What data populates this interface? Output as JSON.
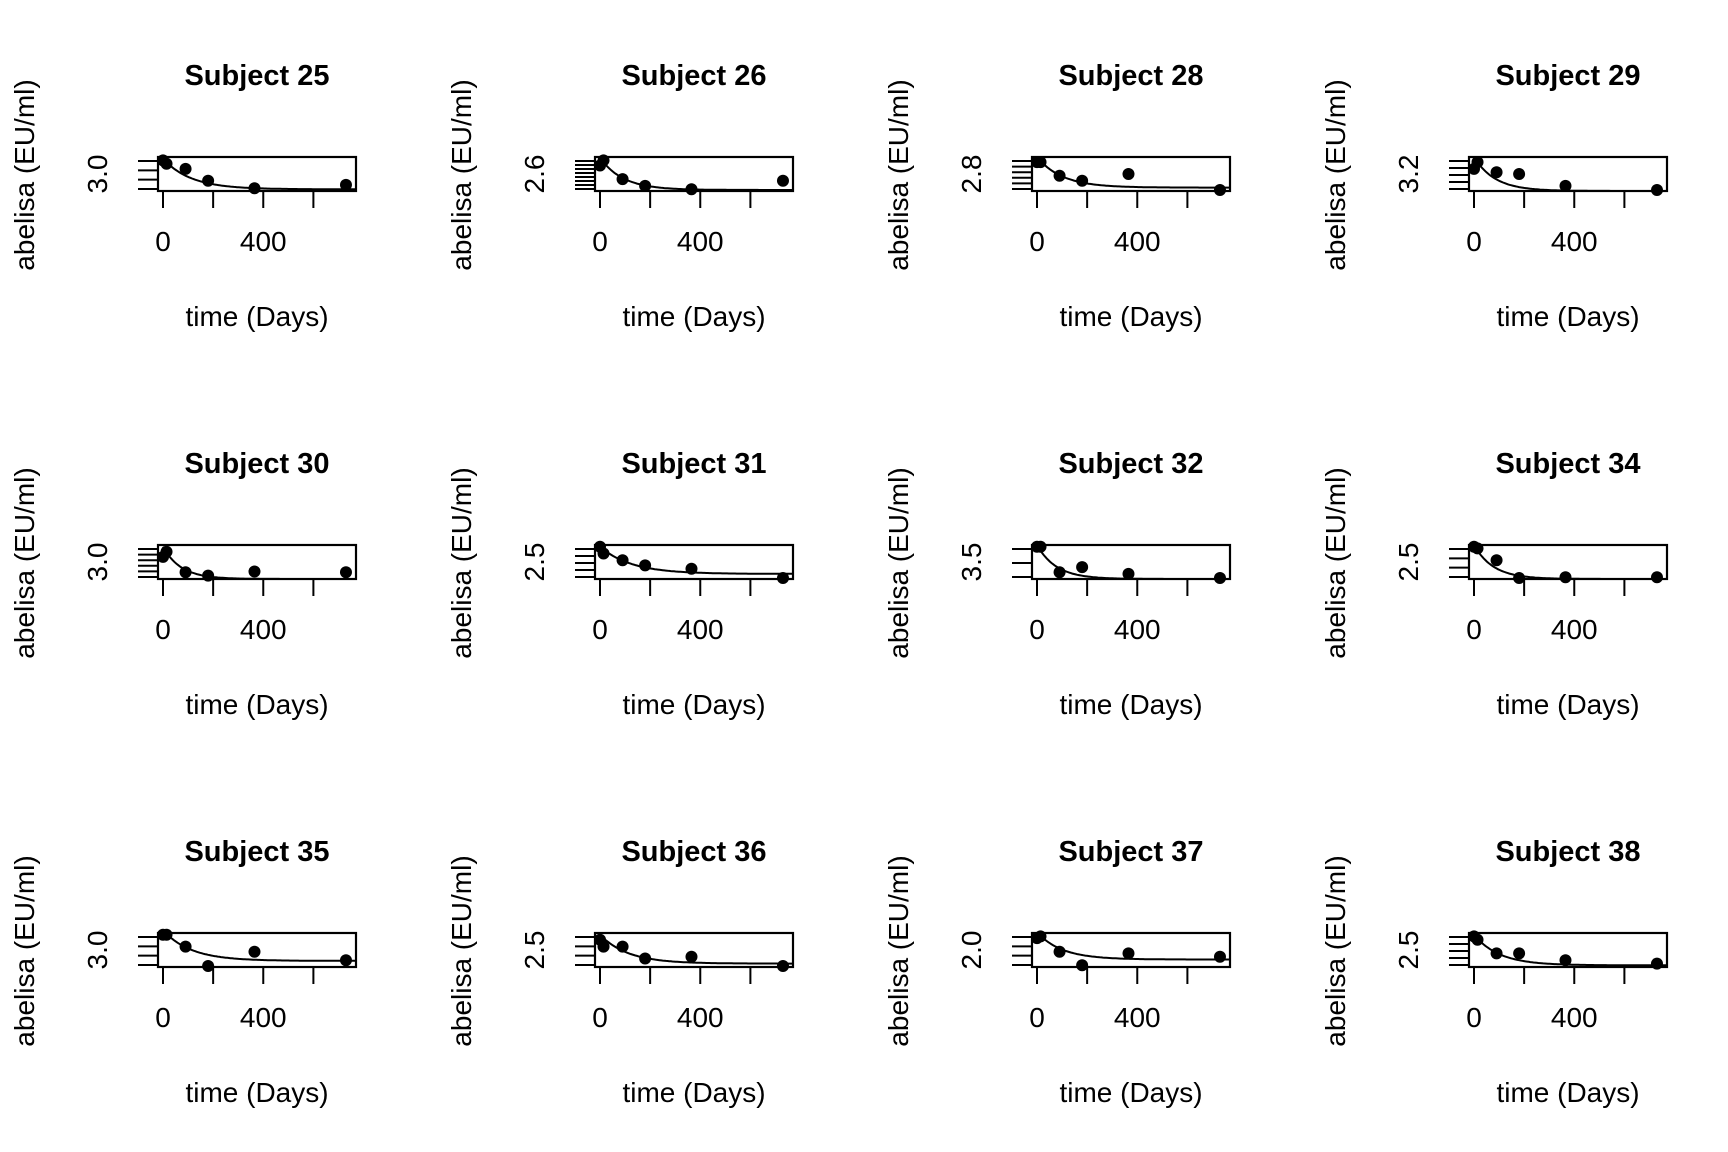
{
  "figure": {
    "background": "#ffffff",
    "ink_color": "#000000",
    "layout": {
      "rows": 3,
      "cols": 4
    }
  },
  "chart_data": [
    {
      "type": "scatter",
      "title": "Subject 25",
      "xlabel": "time (Days)",
      "ylabel": "abelisa (EU/ml)",
      "x_ticks": [
        0,
        400
      ],
      "x_extra_ticks": [
        200,
        600
      ],
      "y_tick_label": "3.0",
      "y_minor_tick_count": 4,
      "xlim": [
        -20,
        770
      ],
      "ylim": [
        0,
        1
      ],
      "points": [
        [
          0,
          0.9
        ],
        [
          14,
          0.8
        ],
        [
          90,
          0.65
        ],
        [
          180,
          0.3
        ],
        [
          365,
          0.08
        ],
        [
          730,
          0.18
        ]
      ],
      "fit": {
        "model": "exponential decay",
        "a": 0.9,
        "k": 0.009,
        "c": 0.05
      }
    },
    {
      "type": "scatter",
      "title": "Subject 26",
      "xlabel": "time (Days)",
      "ylabel": "abelisa (EU/ml)",
      "x_ticks": [
        0,
        400
      ],
      "x_extra_ticks": [
        200,
        600
      ],
      "y_tick_label": "2.6",
      "y_minor_tick_count": 8,
      "xlim": [
        -20,
        770
      ],
      "ylim": [
        0,
        1
      ],
      "points": [
        [
          0,
          0.75
        ],
        [
          14,
          0.9
        ],
        [
          90,
          0.35
        ],
        [
          180,
          0.15
        ],
        [
          365,
          0.05
        ],
        [
          730,
          0.3
        ]
      ],
      "fit": {
        "model": "exponential decay",
        "a": 0.95,
        "k": 0.011,
        "c": 0.03
      }
    },
    {
      "type": "scatter",
      "title": "Subject 28",
      "xlabel": "time (Days)",
      "ylabel": "abelisa (EU/ml)",
      "x_ticks": [
        0,
        400
      ],
      "x_extra_ticks": [
        200,
        600
      ],
      "y_tick_label": "2.8",
      "y_minor_tick_count": 6,
      "xlim": [
        -20,
        770
      ],
      "ylim": [
        0,
        1
      ],
      "points": [
        [
          0,
          0.85
        ],
        [
          14,
          0.85
        ],
        [
          90,
          0.45
        ],
        [
          180,
          0.3
        ],
        [
          365,
          0.5
        ],
        [
          730,
          0.0
        ]
      ],
      "fit": {
        "model": "exponential decay",
        "a": 0.9,
        "k": 0.01,
        "c": 0.1
      }
    },
    {
      "type": "scatter",
      "title": "Subject 29",
      "xlabel": "time (Days)",
      "ylabel": "abelisa (EU/ml)",
      "x_ticks": [
        0,
        400
      ],
      "x_extra_ticks": [
        200,
        600
      ],
      "y_tick_label": "3.2",
      "y_minor_tick_count": 5,
      "xlim": [
        -20,
        770
      ],
      "ylim": [
        0,
        1
      ],
      "points": [
        [
          0,
          0.65
        ],
        [
          14,
          0.85
        ],
        [
          90,
          0.55
        ],
        [
          180,
          0.5
        ],
        [
          365,
          0.15
        ],
        [
          730,
          0.0
        ]
      ],
      "fit": {
        "model": "exponential decay",
        "a": 1.0,
        "k": 0.012,
        "c": 0.0
      }
    },
    {
      "type": "scatter",
      "title": "Subject 30",
      "xlabel": "time (Days)",
      "ylabel": "abelisa (EU/ml)",
      "x_ticks": [
        0,
        400
      ],
      "x_extra_ticks": [
        200,
        600
      ],
      "y_tick_label": "3.0",
      "y_minor_tick_count": 6,
      "xlim": [
        -20,
        770
      ],
      "ylim": [
        0,
        1
      ],
      "points": [
        [
          0,
          0.65
        ],
        [
          14,
          0.8
        ],
        [
          90,
          0.2
        ],
        [
          180,
          0.1
        ],
        [
          365,
          0.22
        ],
        [
          730,
          0.2
        ]
      ],
      "fit": {
        "model": "exponential decay",
        "a": 0.95,
        "k": 0.014,
        "c": 0.0
      }
    },
    {
      "type": "scatter",
      "title": "Subject 31",
      "xlabel": "time (Days)",
      "ylabel": "abelisa (EU/ml)",
      "x_ticks": [
        0,
        400
      ],
      "x_extra_ticks": [
        200,
        600
      ],
      "y_tick_label": "2.5",
      "y_minor_tick_count": 5,
      "xlim": [
        -20,
        770
      ],
      "ylim": [
        0,
        1
      ],
      "points": [
        [
          0,
          0.95
        ],
        [
          14,
          0.75
        ],
        [
          90,
          0.55
        ],
        [
          180,
          0.4
        ],
        [
          365,
          0.3
        ],
        [
          730,
          0.0
        ]
      ],
      "fit": {
        "model": "exponential decay",
        "a": 0.8,
        "k": 0.008,
        "c": 0.15
      }
    },
    {
      "type": "scatter",
      "title": "Subject 32",
      "xlabel": "time (Days)",
      "ylabel": "abelisa (EU/ml)",
      "x_ticks": [
        0,
        400
      ],
      "x_extra_ticks": [
        200,
        600
      ],
      "y_tick_label": "3.5",
      "y_minor_tick_count": 3,
      "xlim": [
        -20,
        770
      ],
      "ylim": [
        0,
        1
      ],
      "points": [
        [
          0,
          0.95
        ],
        [
          14,
          0.95
        ],
        [
          90,
          0.2
        ],
        [
          180,
          0.35
        ],
        [
          365,
          0.15
        ],
        [
          730,
          0.0
        ]
      ],
      "fit": {
        "model": "exponential decay",
        "a": 1.0,
        "k": 0.013,
        "c": 0.0
      }
    },
    {
      "type": "scatter",
      "title": "Subject 34",
      "xlabel": "time (Days)",
      "ylabel": "abelisa (EU/ml)",
      "x_ticks": [
        0,
        400
      ],
      "x_extra_ticks": [
        200,
        600
      ],
      "y_tick_label": "2.5",
      "y_minor_tick_count": 4,
      "xlim": [
        -20,
        770
      ],
      "ylim": [
        0,
        1
      ],
      "points": [
        [
          0,
          0.95
        ],
        [
          14,
          0.9
        ],
        [
          90,
          0.55
        ],
        [
          180,
          0.02
        ],
        [
          365,
          0.05
        ],
        [
          730,
          0.05
        ]
      ],
      "fit": {
        "model": "exponential decay",
        "a": 1.0,
        "k": 0.013,
        "c": 0.0
      }
    },
    {
      "type": "scatter",
      "title": "Subject 35",
      "xlabel": "time (Days)",
      "ylabel": "abelisa (EU/ml)",
      "x_ticks": [
        0,
        400
      ],
      "x_extra_ticks": [
        200,
        600
      ],
      "y_tick_label": "3.0",
      "y_minor_tick_count": 4,
      "xlim": [
        -20,
        770
      ],
      "ylim": [
        0,
        1
      ],
      "points": [
        [
          0,
          0.95
        ],
        [
          14,
          0.95
        ],
        [
          90,
          0.6
        ],
        [
          180,
          0.02
        ],
        [
          365,
          0.45
        ],
        [
          730,
          0.2
        ]
      ],
      "fit": {
        "model": "exponential decay",
        "a": 0.9,
        "k": 0.009,
        "c": 0.18
      }
    },
    {
      "type": "scatter",
      "title": "Subject 36",
      "xlabel": "time (Days)",
      "ylabel": "abelisa (EU/ml)",
      "x_ticks": [
        0,
        400
      ],
      "x_extra_ticks": [
        200,
        600
      ],
      "y_tick_label": "2.5",
      "y_minor_tick_count": 4,
      "xlim": [
        -20,
        770
      ],
      "ylim": [
        0,
        1
      ],
      "points": [
        [
          0,
          0.8
        ],
        [
          14,
          0.6
        ],
        [
          90,
          0.6
        ],
        [
          180,
          0.25
        ],
        [
          365,
          0.3
        ],
        [
          730,
          0.0
        ]
      ],
      "fit": {
        "model": "exponential decay",
        "a": 0.85,
        "k": 0.009,
        "c": 0.1
      }
    },
    {
      "type": "scatter",
      "title": "Subject 37",
      "xlabel": "time (Days)",
      "ylabel": "abelisa (EU/ml)",
      "x_ticks": [
        0,
        400
      ],
      "x_extra_ticks": [
        200,
        600
      ],
      "y_tick_label": "2.0",
      "y_minor_tick_count": 4,
      "xlim": [
        -20,
        770
      ],
      "ylim": [
        0,
        1
      ],
      "points": [
        [
          0,
          0.85
        ],
        [
          14,
          0.9
        ],
        [
          90,
          0.45
        ],
        [
          180,
          0.05
        ],
        [
          365,
          0.4
        ],
        [
          730,
          0.3
        ]
      ],
      "fit": {
        "model": "exponential decay",
        "a": 0.8,
        "k": 0.01,
        "c": 0.22
      }
    },
    {
      "type": "scatter",
      "title": "Subject 38",
      "xlabel": "time (Days)",
      "ylabel": "abelisa (EU/ml)",
      "x_ticks": [
        0,
        400
      ],
      "x_extra_ticks": [
        200,
        600
      ],
      "y_tick_label": "2.5",
      "y_minor_tick_count": 5,
      "xlim": [
        -20,
        770
      ],
      "ylim": [
        0,
        1
      ],
      "points": [
        [
          0,
          0.9
        ],
        [
          14,
          0.8
        ],
        [
          90,
          0.4
        ],
        [
          180,
          0.4
        ],
        [
          365,
          0.2
        ],
        [
          730,
          0.1
        ]
      ],
      "fit": {
        "model": "exponential decay",
        "a": 0.9,
        "k": 0.01,
        "c": 0.05
      }
    }
  ]
}
